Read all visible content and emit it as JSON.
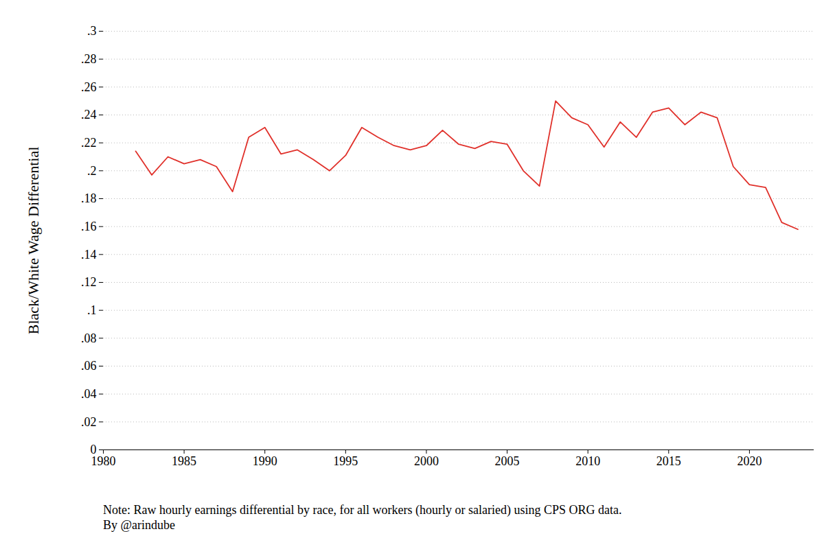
{
  "chart_data": {
    "type": "line",
    "y_label": "Black/White Wage Differential",
    "notes": [
      "Note: Raw hourly earnings differential by race, for all workers (hourly or salaried) using CPS ORG data.",
      "By @arindube"
    ],
    "x": [
      1982,
      1983,
      1984,
      1985,
      1986,
      1987,
      1988,
      1989,
      1990,
      1991,
      1992,
      1993,
      1994,
      1995,
      1996,
      1997,
      1998,
      1999,
      2000,
      2001,
      2002,
      2003,
      2004,
      2005,
      2006,
      2007,
      2008,
      2009,
      2010,
      2011,
      2012,
      2013,
      2014,
      2015,
      2016,
      2017,
      2018,
      2019,
      2020,
      2021,
      2022,
      2023
    ],
    "values": [
      0.214,
      0.197,
      0.21,
      0.205,
      0.208,
      0.203,
      0.185,
      0.224,
      0.231,
      0.212,
      0.215,
      0.208,
      0.2,
      0.211,
      0.231,
      0.224,
      0.218,
      0.215,
      0.218,
      0.229,
      0.219,
      0.216,
      0.221,
      0.219,
      0.2,
      0.189,
      0.25,
      0.238,
      0.233,
      0.217,
      0.235,
      0.224,
      0.242,
      0.245,
      0.233,
      0.242,
      0.238,
      0.203,
      0.19,
      0.188,
      0.163,
      0.158
    ],
    "color": "#e0302a",
    "xlim": [
      1980,
      2024
    ],
    "xticks": [
      1980,
      1985,
      1990,
      1995,
      2000,
      2005,
      2010,
      2015,
      2020
    ],
    "ylim": [
      0,
      0.3
    ],
    "yticks": [
      0,
      {
        "value": 0.02,
        "label": ".02"
      },
      {
        "value": 0.04,
        "label": ".04"
      },
      {
        "value": 0.06,
        "label": ".06"
      },
      {
        "value": 0.08,
        "label": ".08"
      },
      {
        "value": 0.1,
        "label": ".1"
      },
      {
        "value": 0.12,
        "label": ".12"
      },
      {
        "value": 0.14,
        "label": ".14"
      },
      {
        "value": 0.16,
        "label": ".16"
      },
      {
        "value": 0.18,
        "label": ".18"
      },
      {
        "value": 0.2,
        "label": ".2"
      },
      {
        "value": 0.22,
        "label": ".22"
      },
      {
        "value": 0.24,
        "label": ".24"
      },
      {
        "value": 0.26,
        "label": ".26"
      },
      {
        "value": 0.28,
        "label": ".28"
      },
      {
        "value": 0.3,
        "label": ".3"
      }
    ],
    "grid": true
  }
}
